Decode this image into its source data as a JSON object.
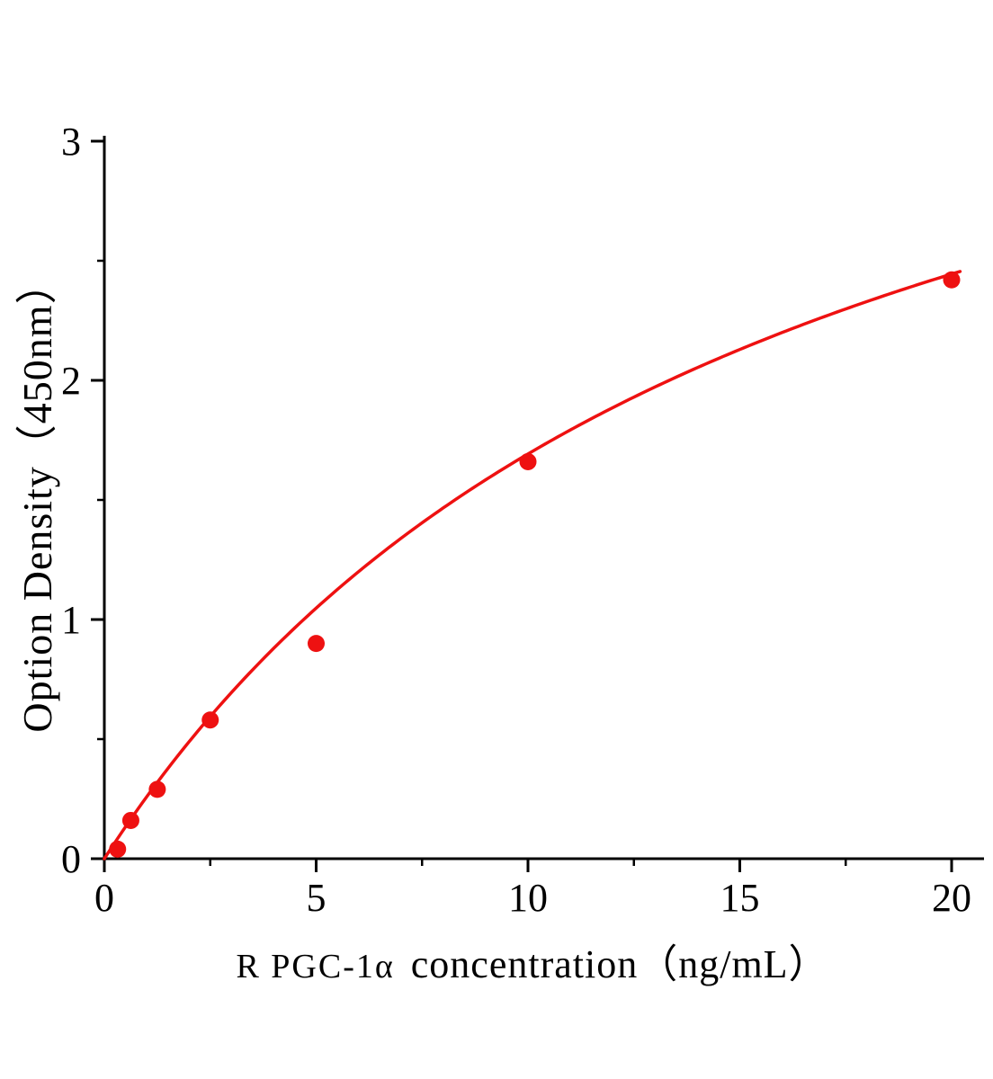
{
  "chart_data": {
    "type": "scatter",
    "title": "",
    "xlabel": "R PGC-1α  concentration（ng/mL）",
    "xlabel_prefix": "R PGC-1α",
    "xlabel_main": "concentration（ng/mL）",
    "ylabel": "Option Density（450nm）",
    "xlim": [
      0,
      20.8
    ],
    "ylim": [
      0,
      3
    ],
    "x_ticks": [
      0,
      5,
      10,
      15,
      20
    ],
    "y_ticks": [
      0,
      1,
      2,
      3
    ],
    "x_minor_ticks": [
      2.5,
      7.5,
      12.5,
      17.5
    ],
    "y_minor_ticks": [
      0.5,
      1.5,
      2.5
    ],
    "grid": false,
    "legend": false,
    "points": [
      {
        "x": 0.313,
        "y": 0.04
      },
      {
        "x": 0.625,
        "y": 0.16
      },
      {
        "x": 1.25,
        "y": 0.29
      },
      {
        "x": 2.5,
        "y": 0.58
      },
      {
        "x": 5,
        "y": 0.9
      },
      {
        "x": 10,
        "y": 1.66
      },
      {
        "x": 20,
        "y": 2.42
      }
    ],
    "fit": {
      "type": "michaelis_menten",
      "a": 4.4,
      "b": 16.0,
      "x_start": 0.0,
      "x_end": 20.25
    },
    "colors": {
      "curve": "#ee1111",
      "points": "#ee1111",
      "axis": "#000000"
    },
    "marker_radius": 9.5,
    "curve_width": 3.5
  }
}
